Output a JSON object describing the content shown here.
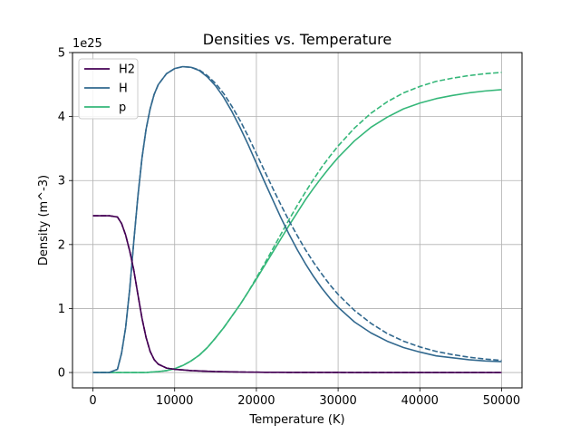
{
  "chart_data": {
    "type": "line",
    "title": "Densities vs. Temperature",
    "xlabel": "Temperature (K)",
    "ylabel": "Density (m^-3)",
    "y_offset_label": "1e25",
    "xlim": [
      -2500,
      52500
    ],
    "ylim": [
      -0.24,
      5.0
    ],
    "xticks": [
      0,
      10000,
      20000,
      30000,
      40000,
      50000
    ],
    "xtick_labels": [
      "0",
      "10000",
      "20000",
      "30000",
      "40000",
      "50000"
    ],
    "yticks": [
      0,
      1,
      2,
      3,
      4,
      5
    ],
    "ytick_labels": [
      "0",
      "1",
      "2",
      "3",
      "4",
      "5"
    ],
    "grid": true,
    "legend_position": "upper-left",
    "x": [
      0,
      1000,
      2000,
      3000,
      3500,
      4000,
      4500,
      5000,
      5500,
      6000,
      6500,
      7000,
      7500,
      8000,
      9000,
      10000,
      11000,
      12000,
      13000,
      14000,
      15000,
      16000,
      17000,
      18000,
      19000,
      20000,
      21000,
      22000,
      23000,
      24000,
      25000,
      26000,
      27000,
      28000,
      29000,
      30000,
      32000,
      34000,
      36000,
      38000,
      40000,
      42000,
      44000,
      46000,
      48000,
      50000
    ],
    "series": [
      {
        "name": "H2",
        "color": "#440154",
        "style": "solid",
        "values": [
          2.45,
          2.45,
          2.45,
          2.43,
          2.33,
          2.15,
          1.9,
          1.6,
          1.22,
          0.85,
          0.55,
          0.33,
          0.2,
          0.13,
          0.07,
          0.05,
          0.04,
          0.03,
          0.025,
          0.02,
          0.015,
          0.012,
          0.01,
          0.008,
          0.006,
          0.005,
          0.004,
          0.003,
          0.003,
          0.002,
          0.002,
          0.002,
          0.001,
          0.001,
          0.001,
          0.001,
          0,
          0,
          0,
          0,
          0,
          0,
          0,
          0,
          0,
          0
        ]
      },
      {
        "name": "H2 (dashed)",
        "color": "#440154",
        "style": "dashed",
        "values": [
          2.45,
          2.45,
          2.45,
          2.43,
          2.33,
          2.15,
          1.9,
          1.6,
          1.22,
          0.85,
          0.55,
          0.33,
          0.2,
          0.13,
          0.07,
          0.05,
          0.04,
          0.03,
          0.025,
          0.02,
          0.015,
          0.012,
          0.01,
          0.008,
          0.006,
          0.005,
          0.004,
          0.003,
          0.003,
          0.002,
          0.002,
          0.002,
          0.001,
          0.001,
          0.001,
          0.001,
          0,
          0,
          0,
          0,
          0,
          0,
          0,
          0,
          0,
          0
        ]
      },
      {
        "name": "H",
        "color": "#31688e",
        "style": "solid",
        "values": [
          0,
          0,
          0,
          0.05,
          0.3,
          0.7,
          1.3,
          2.05,
          2.75,
          3.35,
          3.8,
          4.12,
          4.35,
          4.5,
          4.67,
          4.75,
          4.78,
          4.77,
          4.72,
          4.62,
          4.48,
          4.3,
          4.08,
          3.83,
          3.56,
          3.27,
          2.98,
          2.7,
          2.42,
          2.16,
          1.92,
          1.7,
          1.5,
          1.32,
          1.16,
          1.02,
          0.79,
          0.62,
          0.49,
          0.39,
          0.32,
          0.26,
          0.23,
          0.2,
          0.18,
          0.17
        ]
      },
      {
        "name": "H (dashed)",
        "color": "#31688e",
        "style": "dashed",
        "values": [
          0,
          0,
          0,
          0.05,
          0.3,
          0.7,
          1.3,
          2.05,
          2.75,
          3.35,
          3.8,
          4.12,
          4.35,
          4.5,
          4.67,
          4.75,
          4.78,
          4.77,
          4.73,
          4.64,
          4.52,
          4.36,
          4.16,
          3.94,
          3.69,
          3.42,
          3.15,
          2.88,
          2.62,
          2.37,
          2.14,
          1.92,
          1.72,
          1.54,
          1.37,
          1.22,
          0.97,
          0.77,
          0.61,
          0.49,
          0.4,
          0.33,
          0.28,
          0.24,
          0.21,
          0.19
        ]
      },
      {
        "name": "p",
        "color": "#35b779",
        "style": "solid",
        "values": [
          0,
          0,
          0,
          0,
          0,
          0,
          0,
          0,
          0,
          0,
          0,
          0.005,
          0.01,
          0.015,
          0.03,
          0.06,
          0.11,
          0.18,
          0.27,
          0.39,
          0.54,
          0.7,
          0.88,
          1.06,
          1.26,
          1.46,
          1.67,
          1.88,
          2.09,
          2.3,
          2.5,
          2.7,
          2.88,
          3.05,
          3.21,
          3.36,
          3.62,
          3.83,
          3.99,
          4.12,
          4.21,
          4.28,
          4.33,
          4.37,
          4.4,
          4.42
        ]
      },
      {
        "name": "p (dashed)",
        "color": "#35b779",
        "style": "dashed",
        "values": [
          0,
          0,
          0,
          0,
          0,
          0,
          0,
          0,
          0,
          0,
          0,
          0.005,
          0.01,
          0.015,
          0.03,
          0.06,
          0.11,
          0.18,
          0.27,
          0.39,
          0.54,
          0.7,
          0.88,
          1.06,
          1.26,
          1.48,
          1.7,
          1.93,
          2.16,
          2.39,
          2.61,
          2.82,
          3.02,
          3.21,
          3.38,
          3.54,
          3.82,
          4.05,
          4.23,
          4.37,
          4.47,
          4.55,
          4.6,
          4.64,
          4.67,
          4.69
        ]
      }
    ],
    "legend": [
      {
        "label": "H2",
        "color": "#440154"
      },
      {
        "label": "H",
        "color": "#31688e"
      },
      {
        "label": "p",
        "color": "#35b779"
      }
    ]
  }
}
